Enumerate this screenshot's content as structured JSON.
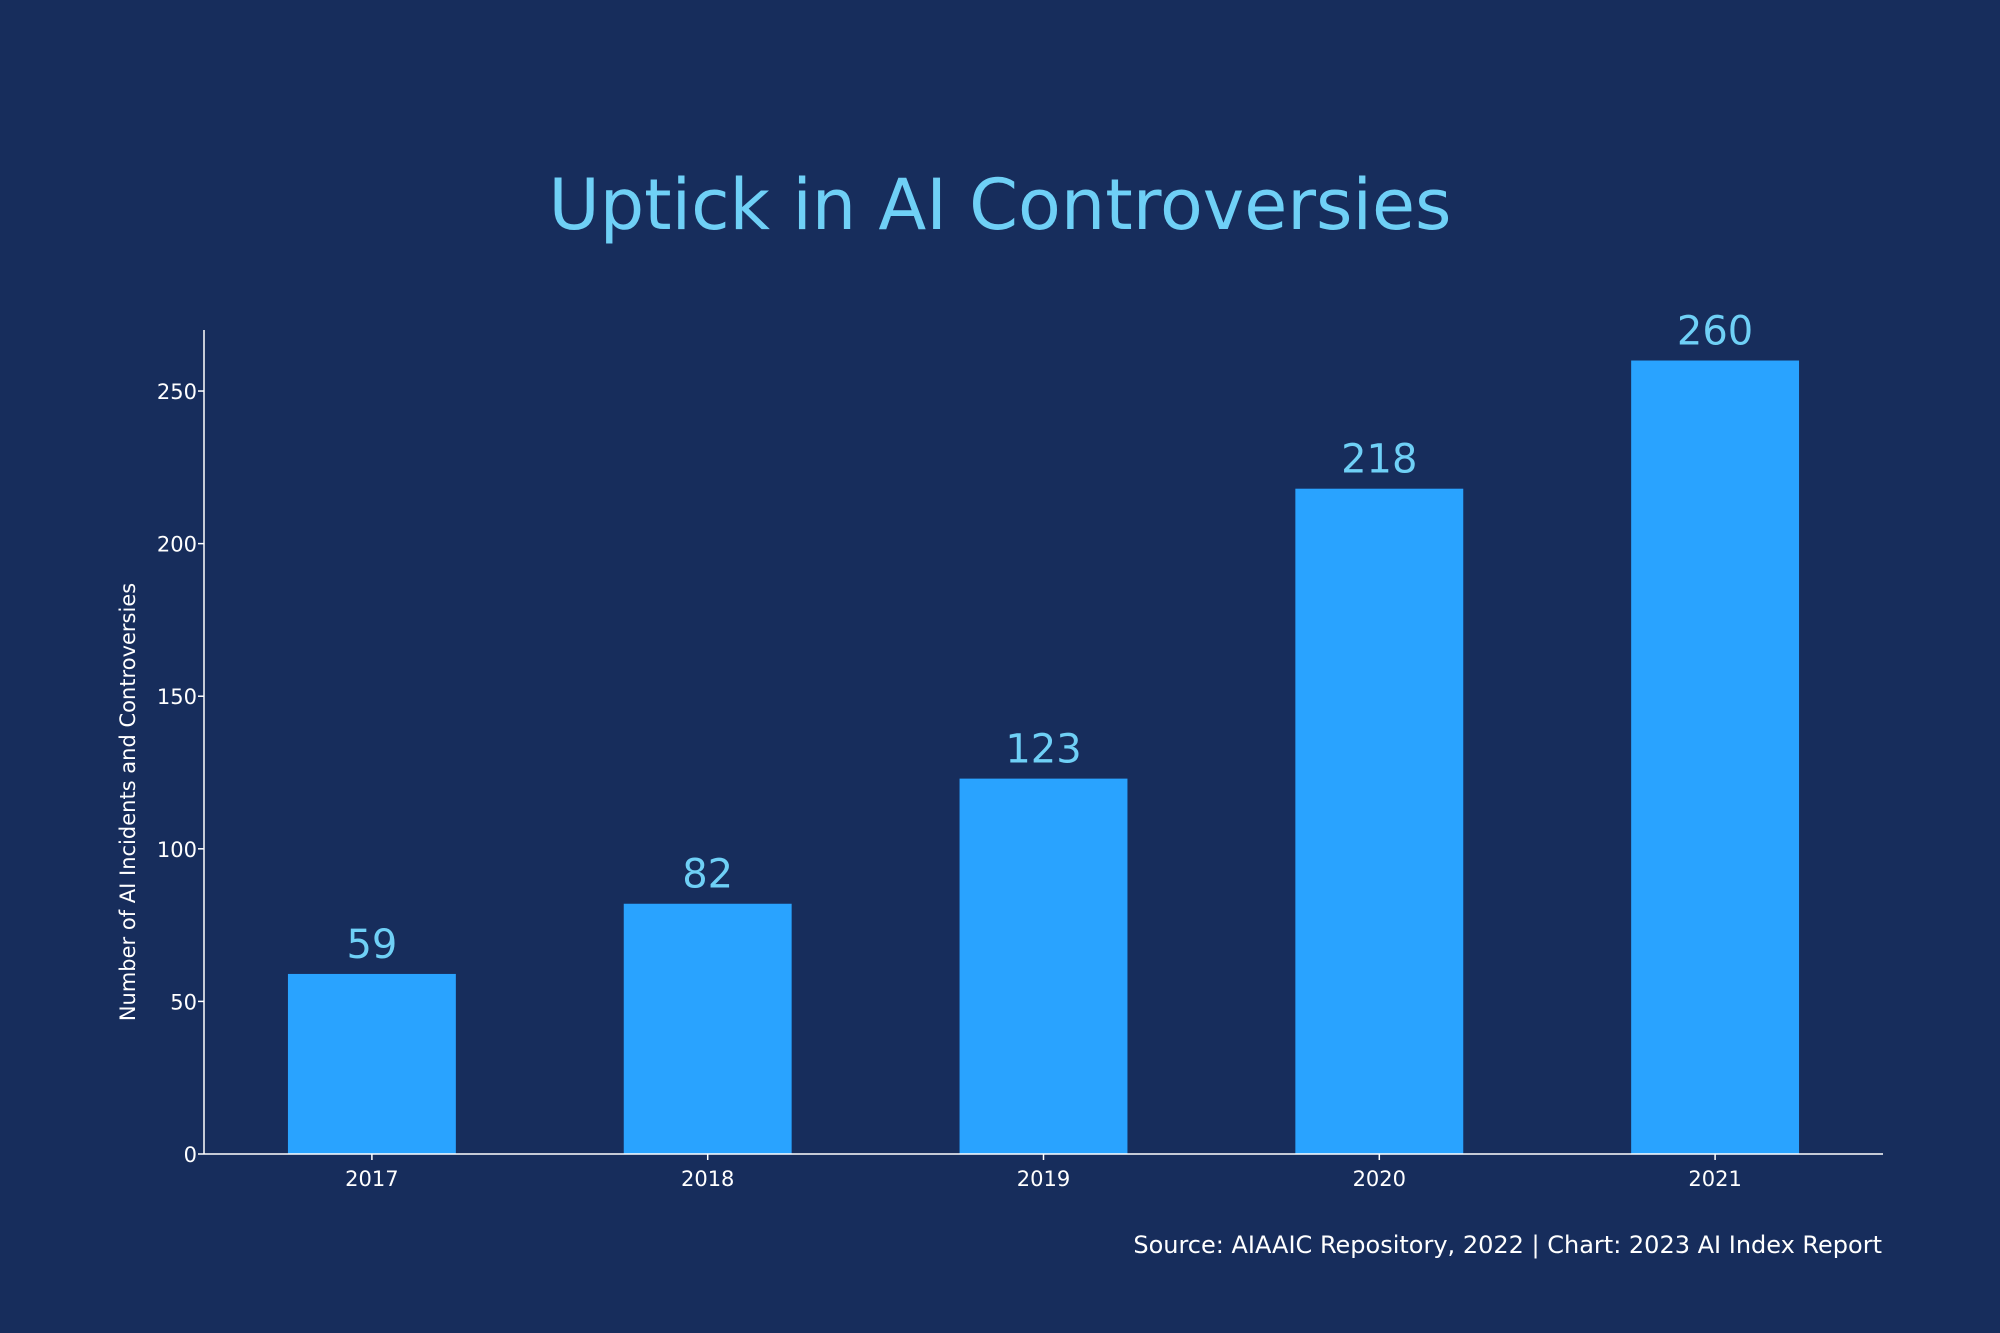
{
  "chart_data": {
    "type": "bar",
    "title": "Uptick in AI Controversies",
    "xlabel": "",
    "ylabel": "Number of AI Incidents and Controversies",
    "categories": [
      "2017",
      "2018",
      "2019",
      "2020",
      "2021"
    ],
    "values": [
      59,
      82,
      123,
      218,
      260
    ],
    "ylim": [
      0,
      270
    ],
    "yticks": [
      0,
      50,
      100,
      150,
      200,
      250
    ],
    "grid": false,
    "legend": "none",
    "bar_color": "#29a3ff",
    "label_color": "#6fd0f6",
    "source": "Source: AIAAIC Repository, 2022 | Chart: 2023 AI Index Report"
  }
}
